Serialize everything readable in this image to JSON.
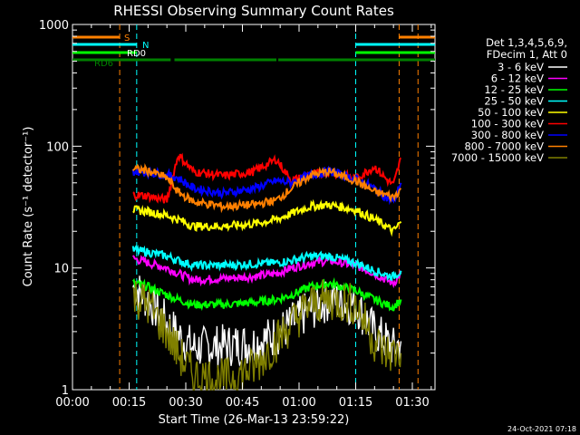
{
  "chart_data": {
    "type": "line",
    "title": "RHESSI Observing Summary Count Rates",
    "xlabel": "Start Time (26-Mar-13 23:59:22)",
    "ylabel": "Count Rate (s⁻¹ detector⁻¹)",
    "yscale": "log",
    "ylim": [
      1,
      1000
    ],
    "xlim_minutes": [
      0,
      96
    ],
    "x_ticks": [
      "00:00",
      "00:15",
      "00:30",
      "00:45",
      "01:00",
      "01:15",
      "01:30"
    ],
    "x_tick_minutes": [
      0,
      15,
      30,
      45,
      60,
      75,
      90
    ],
    "y_ticks": [
      "1",
      "10",
      "100",
      "1000"
    ],
    "y_tick_values": [
      1,
      10,
      100,
      1000
    ],
    "legend_header": [
      "Det 1,3,4,5,6,9,",
      "FDecim 1, Att 0"
    ],
    "legend_position": "right",
    "series": [
      {
        "name": "3 - 6 keV",
        "color": "#ffffff",
        "minutes": [
          16,
          20,
          25,
          28,
          32,
          40,
          48,
          54,
          58,
          63,
          68,
          75,
          80,
          83,
          85,
          87
        ],
        "values": [
          7,
          5.5,
          3.5,
          2.8,
          2.2,
          2.3,
          2.4,
          2.8,
          3.5,
          4.5,
          5.5,
          5,
          3,
          2.5,
          2.2,
          2.5
        ]
      },
      {
        "name": "6 - 12 keV",
        "color": "#ff00ff",
        "minutes": [
          16,
          20,
          25,
          28,
          32,
          40,
          48,
          54,
          58,
          63,
          68,
          75,
          80,
          83,
          85,
          87
        ],
        "values": [
          12,
          11,
          10,
          9,
          8,
          8.2,
          8.5,
          9,
          10,
          11,
          11.5,
          10.5,
          9,
          8,
          7.5,
          9
        ]
      },
      {
        "name": "12 - 25 keV",
        "color": "#00ff00",
        "minutes": [
          16,
          20,
          25,
          28,
          32,
          40,
          48,
          54,
          58,
          63,
          68,
          75,
          80,
          83,
          85,
          87
        ],
        "values": [
          7.5,
          7,
          6,
          5.5,
          5,
          5,
          5.2,
          5.5,
          6,
          7,
          7.5,
          6.5,
          5.5,
          5,
          4.8,
          5.5
        ]
      },
      {
        "name": "25 - 50 keV",
        "color": "#00ffff",
        "minutes": [
          16,
          20,
          25,
          28,
          32,
          40,
          48,
          54,
          58,
          63,
          68,
          75,
          80,
          83,
          85,
          87
        ],
        "values": [
          14,
          13.5,
          12.5,
          11.5,
          10.5,
          10.5,
          10.8,
          11,
          11.5,
          12.5,
          12.5,
          11,
          9.5,
          8.8,
          8.5,
          9.5
        ]
      },
      {
        "name": "50 - 100 keV",
        "color": "#ffff00",
        "minutes": [
          16,
          20,
          25,
          28,
          32,
          40,
          48,
          54,
          58,
          63,
          68,
          75,
          80,
          83,
          85,
          87
        ],
        "values": [
          30,
          29,
          27,
          25,
          22,
          22,
          23,
          25,
          28,
          32,
          33,
          30,
          25,
          22,
          20,
          24
        ]
      },
      {
        "name": "100 - 300 keV",
        "color": "#ff0000",
        "minutes": [
          16,
          20,
          25,
          28,
          32,
          40,
          48,
          54,
          58,
          63,
          68,
          75,
          80,
          83,
          85,
          87
        ],
        "values": [
          40,
          39,
          36,
          85,
          62,
          57,
          62,
          78,
          52,
          58,
          62,
          54,
          68,
          54,
          48,
          80
        ]
      },
      {
        "name": "300 - 800 keV",
        "color": "#0000ff",
        "minutes": [
          16,
          20,
          25,
          28,
          32,
          40,
          48,
          54,
          58,
          63,
          68,
          75,
          80,
          83,
          85,
          87
        ],
        "values": [
          62,
          61,
          58,
          55,
          45,
          41,
          45,
          52,
          50,
          58,
          62,
          54,
          45,
          38,
          35,
          50
        ]
      },
      {
        "name": "800 - 7000 keV",
        "color": "#ff8000",
        "minutes": [
          16,
          20,
          25,
          28,
          32,
          40,
          48,
          54,
          58,
          63,
          68,
          75,
          80,
          83,
          85,
          87
        ],
        "values": [
          65,
          63,
          55,
          42,
          35,
          32,
          33,
          36,
          45,
          58,
          62,
          52,
          42,
          40,
          38,
          45
        ]
      },
      {
        "name": "7000 - 15000 keV",
        "color": "#808000",
        "minutes": [
          16,
          20,
          25,
          28,
          32,
          40,
          48,
          54,
          58,
          63,
          68,
          75,
          80,
          83,
          85,
          87
        ],
        "values": [
          6,
          5,
          3,
          2,
          1.3,
          1.2,
          1.5,
          2.5,
          3.5,
          5,
          5.5,
          5,
          2.5,
          2,
          2,
          2
        ]
      }
    ],
    "flag_bars": [
      {
        "label": "S",
        "color": "#ff8000",
        "segments": [
          [
            0,
            12.5
          ],
          [
            86.5,
            96
          ]
        ]
      },
      {
        "label": "N",
        "color": "#00ffff",
        "segments": [
          [
            0,
            17
          ],
          [
            75,
            96
          ]
        ]
      },
      {
        "label": "RD0",
        "color": "#00ff00",
        "segments": [
          [
            0,
            17
          ],
          [
            75,
            96
          ]
        ]
      },
      {
        "label": "RD6",
        "color": "#008000",
        "segments": [
          [
            0,
            12.5
          ],
          [
            12.5,
            26
          ],
          [
            27,
            54
          ],
          [
            54.5,
            75
          ],
          [
            75,
            96
          ]
        ]
      }
    ],
    "vertical_markers": [
      {
        "minute": 12.5,
        "color": "#ff8000"
      },
      {
        "minute": 17,
        "color": "#00ffff"
      },
      {
        "minute": 75,
        "color": "#00ffff"
      },
      {
        "minute": 86.5,
        "color": "#ff8000"
      },
      {
        "minute": 91.5,
        "color": "#ff8000"
      }
    ],
    "grid": false
  },
  "timestamp": "24-Oct-2021 07:18"
}
